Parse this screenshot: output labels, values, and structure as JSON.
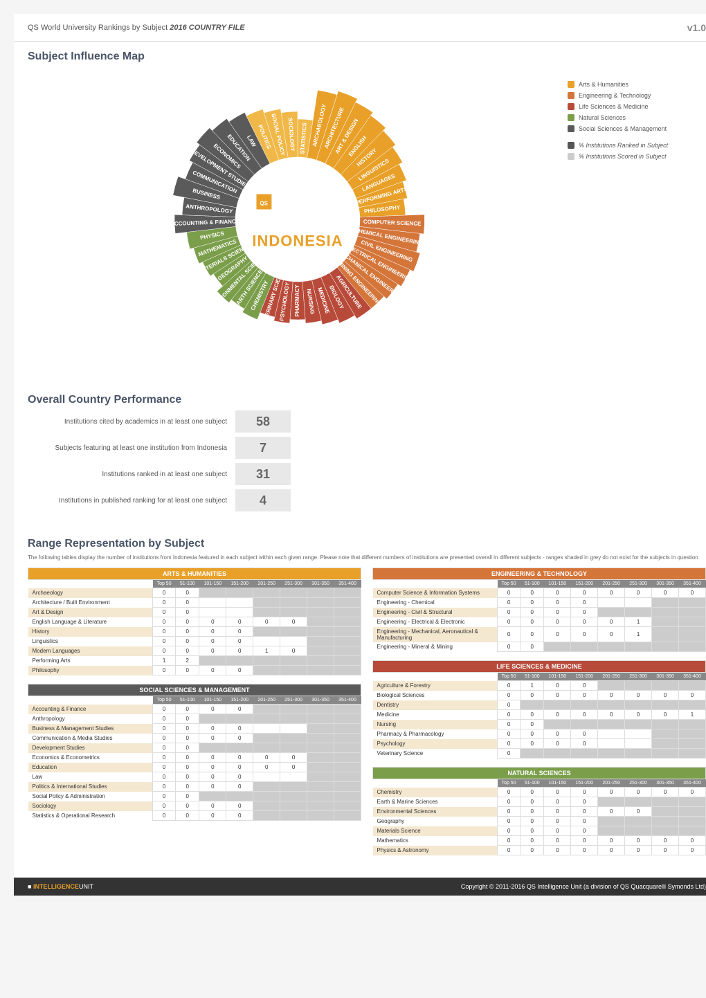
{
  "header": {
    "title_prefix": "QS World University Rankings by Subject ",
    "title_year": "2016 COUNTRY FILE",
    "version": "v1.0"
  },
  "sections": {
    "influence_title": "Subject Influence Map",
    "performance_title": "Overall Country Performance",
    "range_title": "Range Representation by Subject",
    "range_desc": "The following tables display the number of institutions from Indonesia featured in each subject within each given range. Please note that different numbers of institutions are presented overall in different subjects - ranges shaded in grey do not exist for the subjects in question"
  },
  "country": "INDONESIA",
  "qs_logo": "QS WORLD UNIVERSITY RANKINGS by subject",
  "legend": {
    "categories": [
      {
        "label": "Arts & Humanities",
        "color": "#e8a028"
      },
      {
        "label": "Engineering & Technology",
        "color": "#d4753a"
      },
      {
        "label": "Life Sciences & Medicine",
        "color": "#b84a3a"
      },
      {
        "label": "Natural Sciences",
        "color": "#7a9e4a"
      },
      {
        "label": "Social Sciences & Management",
        "color": "#5a5a5a"
      }
    ],
    "metrics": [
      {
        "label": "% Institutions Ranked in Subject",
        "color": "#555"
      },
      {
        "label": "% Institutions Scored in Subject",
        "color": "#ccc"
      }
    ]
  },
  "donut": {
    "slices": [
      {
        "label": "STATISTICS",
        "color": "#f0b848",
        "ring": 0.5
      },
      {
        "label": "ARCHAEOLOGY",
        "color": "#e8a028",
        "ring": 0.9
      },
      {
        "label": "ARCHITECTURE",
        "color": "#e8a028",
        "ring": 0.95
      },
      {
        "label": "ART & DESIGN",
        "color": "#e8a028",
        "ring": 0.9
      },
      {
        "label": "ENGLISH",
        "color": "#e8a028",
        "ring": 0.85
      },
      {
        "label": "HISTORY",
        "color": "#e8a028",
        "ring": 0.8
      },
      {
        "label": "LINGUISTICS",
        "color": "#e8a028",
        "ring": 0.75
      },
      {
        "label": "LANGUAGES",
        "color": "#e8a028",
        "ring": 0.7
      },
      {
        "label": "PERFORMING ARTS",
        "color": "#e8a028",
        "ring": 0.65
      },
      {
        "label": "PHILOSOPHY",
        "color": "#e8a028",
        "ring": 0.6
      },
      {
        "label": "COMPUTER SCIENCE",
        "color": "#d4753a",
        "ring": 0.85
      },
      {
        "label": "CHEMICAL ENGINEERING",
        "color": "#d4753a",
        "ring": 0.8
      },
      {
        "label": "CIVIL ENGINEERING",
        "color": "#d4753a",
        "ring": 0.85
      },
      {
        "label": "ELECTRICAL ENGINEERING",
        "color": "#d4753a",
        "ring": 0.8
      },
      {
        "label": "MECHANICAL ENGINEERING",
        "color": "#d4753a",
        "ring": 0.75
      },
      {
        "label": "MINING ENGINEERING",
        "color": "#d4753a",
        "ring": 0.7
      },
      {
        "label": "AGRICULTURE",
        "color": "#b84a3a",
        "ring": 0.7
      },
      {
        "label": "BIOLOGY",
        "color": "#b84a3a",
        "ring": 0.65
      },
      {
        "label": "MEDICINE",
        "color": "#b84a3a",
        "ring": 0.6
      },
      {
        "label": "NURSING",
        "color": "#b84a3a",
        "ring": 0.55
      },
      {
        "label": "PHARMACY",
        "color": "#b84a3a",
        "ring": 0.5
      },
      {
        "label": "PSYCHOLOGY",
        "color": "#b84a3a",
        "ring": 0.55
      },
      {
        "label": "VETERINARY SCIENCE",
        "color": "#b84a3a",
        "ring": 0.5
      },
      {
        "label": "CHEMISTRY",
        "color": "#7a9e4a",
        "ring": 0.6
      },
      {
        "label": "EARTH SCIENCES",
        "color": "#7a9e4a",
        "ring": 0.55
      },
      {
        "label": "ENVIRONMENTAL SCIENCES",
        "color": "#7a9e4a",
        "ring": 0.6
      },
      {
        "label": "GEOGRAPHY",
        "color": "#7a9e4a",
        "ring": 0.5
      },
      {
        "label": "MATERIALS SCIENCE",
        "color": "#7a9e4a",
        "ring": 0.55
      },
      {
        "label": "MATHEMATICS",
        "color": "#7a9e4a",
        "ring": 0.6
      },
      {
        "label": "PHYSICS",
        "color": "#7a9e4a",
        "ring": 0.65
      },
      {
        "label": "ACCOUNTING & FINANCE",
        "color": "#5a5a5a",
        "ring": 0.8
      },
      {
        "label": "ANTHROPOLOGY",
        "color": "#5a5a5a",
        "ring": 0.7
      },
      {
        "label": "BUSINESS",
        "color": "#5a5a5a",
        "ring": 0.85
      },
      {
        "label": "COMMUNICATION",
        "color": "#5a5a5a",
        "ring": 0.75
      },
      {
        "label": "DEVELOPMENT STUDIES",
        "color": "#5a5a5a",
        "ring": 0.8
      },
      {
        "label": "ECONOMICS",
        "color": "#5a5a5a",
        "ring": 0.85
      },
      {
        "label": "EDUCATION",
        "color": "#5a5a5a",
        "ring": 0.8
      },
      {
        "label": "LAW",
        "color": "#5a5a5a",
        "ring": 0.75
      },
      {
        "label": "POLITICS",
        "color": "#f0b848",
        "ring": 0.7
      },
      {
        "label": "SOCIAL POLICY",
        "color": "#f0b848",
        "ring": 0.65
      },
      {
        "label": "SOCIOLOGY",
        "color": "#f0b848",
        "ring": 0.6
      }
    ]
  },
  "performance": [
    {
      "label": "Institutions cited by academics in at least one subject",
      "value": "58"
    },
    {
      "label": "Subjects featuring at least one institution from Indonesia",
      "value": "7"
    },
    {
      "label": "Institutions ranked in at least one subject",
      "value": "31"
    },
    {
      "label": "Institutions in published ranking for at least one subject",
      "value": "4"
    }
  ],
  "range_columns": [
    "Top 50",
    "51-100",
    "101-150",
    "151-200",
    "201-250",
    "251-300",
    "301-350",
    "351-400"
  ],
  "tables": {
    "arts": {
      "title": "ARTS & HUMANITIES",
      "class": "cat-arts",
      "rows": [
        {
          "label": "Archaeology",
          "cells": [
            "0",
            "0",
            "",
            "",
            "",
            "",
            "",
            ""
          ],
          "grey": [
            2,
            3,
            4,
            5,
            6,
            7
          ]
        },
        {
          "label": "Architecture / Built Environment",
          "cells": [
            "0",
            "0",
            "",
            "",
            "",
            "",
            "",
            ""
          ],
          "grey": [
            4,
            5,
            6,
            7
          ]
        },
        {
          "label": "Art & Design",
          "cells": [
            "0",
            "0",
            "",
            "",
            "",
            "",
            "",
            ""
          ],
          "grey": [
            4,
            5,
            6,
            7
          ]
        },
        {
          "label": "English Language & Literature",
          "cells": [
            "0",
            "0",
            "0",
            "0",
            "0",
            "0",
            "",
            ""
          ],
          "grey": [
            6,
            7
          ]
        },
        {
          "label": "History",
          "cells": [
            "0",
            "0",
            "0",
            "0",
            "",
            "",
            "",
            ""
          ],
          "grey": [
            4,
            5,
            6,
            7
          ]
        },
        {
          "label": "Linguistics",
          "cells": [
            "0",
            "0",
            "0",
            "0",
            "",
            "",
            "",
            ""
          ],
          "grey": [
            6,
            7
          ]
        },
        {
          "label": "Modern Languages",
          "cells": [
            "0",
            "0",
            "0",
            "0",
            "1",
            "0",
            "",
            ""
          ],
          "grey": [
            6,
            7
          ]
        },
        {
          "label": "Performing Arts",
          "cells": [
            "1",
            "2",
            "",
            "",
            "",
            "",
            "",
            ""
          ],
          "grey": [
            2,
            3,
            4,
            5,
            6,
            7
          ]
        },
        {
          "label": "Philosophy",
          "cells": [
            "0",
            "0",
            "0",
            "0",
            "",
            "",
            "",
            ""
          ],
          "grey": [
            4,
            5,
            6,
            7
          ]
        }
      ]
    },
    "social": {
      "title": "SOCIAL SCIENCES & MANAGEMENT",
      "class": "cat-soc",
      "rows": [
        {
          "label": "Accounting & Finance",
          "cells": [
            "0",
            "0",
            "0",
            "0",
            "",
            "",
            "",
            ""
          ],
          "grey": [
            4,
            5,
            6,
            7
          ]
        },
        {
          "label": "Anthropology",
          "cells": [
            "0",
            "0",
            "",
            "",
            "",
            "",
            "",
            ""
          ],
          "grey": [
            2,
            3,
            4,
            5,
            6,
            7
          ]
        },
        {
          "label": "Business & Management Studies",
          "cells": [
            "0",
            "0",
            "0",
            "0",
            "",
            "",
            "",
            ""
          ],
          "grey": [
            6,
            7
          ]
        },
        {
          "label": "Communication & Media Studies",
          "cells": [
            "0",
            "0",
            "0",
            "0",
            "",
            "",
            "",
            ""
          ],
          "grey": [
            4,
            5,
            6,
            7
          ]
        },
        {
          "label": "Development Studies",
          "cells": [
            "0",
            "0",
            "",
            "",
            "",
            "",
            "",
            ""
          ],
          "grey": [
            2,
            3,
            4,
            5,
            6,
            7
          ]
        },
        {
          "label": "Economics & Econometrics",
          "cells": [
            "0",
            "0",
            "0",
            "0",
            "0",
            "0",
            "",
            ""
          ],
          "grey": [
            6,
            7
          ]
        },
        {
          "label": "Education",
          "cells": [
            "0",
            "0",
            "0",
            "0",
            "0",
            "0",
            "",
            ""
          ],
          "grey": [
            6,
            7
          ]
        },
        {
          "label": "Law",
          "cells": [
            "0",
            "0",
            "0",
            "0",
            "",
            "",
            "",
            ""
          ],
          "grey": [
            6,
            7
          ]
        },
        {
          "label": "Politics & International Studies",
          "cells": [
            "0",
            "0",
            "0",
            "0",
            "",
            "",
            "",
            ""
          ],
          "grey": [
            4,
            5,
            6,
            7
          ]
        },
        {
          "label": "Social Policy & Administration",
          "cells": [
            "0",
            "0",
            "",
            "",
            "",
            "",
            "",
            ""
          ],
          "grey": [
            2,
            3,
            4,
            5,
            6,
            7
          ]
        },
        {
          "label": "Sociology",
          "cells": [
            "0",
            "0",
            "0",
            "0",
            "",
            "",
            "",
            ""
          ],
          "grey": [
            4,
            5,
            6,
            7
          ]
        },
        {
          "label": "Statistics & Operational Research",
          "cells": [
            "0",
            "0",
            "0",
            "0",
            "",
            "",
            "",
            ""
          ],
          "grey": [
            4,
            5,
            6,
            7
          ]
        }
      ]
    },
    "eng": {
      "title": "ENGINEERING & TECHNOLOGY",
      "class": "cat-eng",
      "rows": [
        {
          "label": "Computer Science & Information Systems",
          "cells": [
            "0",
            "0",
            "0",
            "0",
            "0",
            "0",
            "0",
            "0"
          ],
          "grey": []
        },
        {
          "label": "Engineering - Chemical",
          "cells": [
            "0",
            "0",
            "0",
            "0",
            "",
            "",
            "",
            ""
          ],
          "grey": [
            6,
            7
          ]
        },
        {
          "label": "Engineering - Civil & Structural",
          "cells": [
            "0",
            "0",
            "0",
            "0",
            "",
            "",
            "",
            ""
          ],
          "grey": [
            4,
            5,
            6,
            7
          ]
        },
        {
          "label": "Engineering - Electrical & Electronic",
          "cells": [
            "0",
            "0",
            "0",
            "0",
            "0",
            "1",
            "",
            ""
          ],
          "grey": [
            6,
            7
          ]
        },
        {
          "label": "Engineering - Mechanical, Aeronautical & Manufacturing",
          "cells": [
            "0",
            "0",
            "0",
            "0",
            "0",
            "1",
            "",
            ""
          ],
          "grey": [
            6,
            7
          ]
        },
        {
          "label": "Engineering - Mineral & Mining",
          "cells": [
            "0",
            "0",
            "",
            "",
            "",
            "",
            "",
            ""
          ],
          "grey": [
            2,
            3,
            4,
            5,
            6,
            7
          ]
        }
      ]
    },
    "life": {
      "title": "LIFE SCIENCES & MEDICINE",
      "class": "cat-life",
      "rows": [
        {
          "label": "Agriculture & Forestry",
          "cells": [
            "0",
            "1",
            "0",
            "0",
            "",
            "",
            "",
            ""
          ],
          "grey": [
            4,
            5,
            6,
            7
          ]
        },
        {
          "label": "Biological Sciences",
          "cells": [
            "0",
            "0",
            "0",
            "0",
            "0",
            "0",
            "0",
            "0"
          ],
          "grey": []
        },
        {
          "label": "Dentistry",
          "cells": [
            "0",
            "",
            "",
            "",
            "",
            "",
            "",
            ""
          ],
          "grey": [
            1,
            2,
            3,
            4,
            5,
            6,
            7
          ]
        },
        {
          "label": "Medicine",
          "cells": [
            "0",
            "0",
            "0",
            "0",
            "0",
            "0",
            "0",
            "1"
          ],
          "grey": []
        },
        {
          "label": "Nursing",
          "cells": [
            "0",
            "0",
            "",
            "",
            "",
            "",
            "",
            ""
          ],
          "grey": [
            2,
            3,
            4,
            5,
            6,
            7
          ]
        },
        {
          "label": "Pharmacy & Pharmacology",
          "cells": [
            "0",
            "0",
            "0",
            "0",
            "",
            "",
            "",
            ""
          ],
          "grey": [
            6,
            7
          ]
        },
        {
          "label": "Psychology",
          "cells": [
            "0",
            "0",
            "0",
            "0",
            "",
            "",
            "",
            ""
          ],
          "grey": [
            6,
            7
          ]
        },
        {
          "label": "Veterinary Science",
          "cells": [
            "0",
            "",
            "",
            "",
            "",
            "",
            "",
            ""
          ],
          "grey": [
            1,
            2,
            3,
            4,
            5,
            6,
            7
          ]
        }
      ]
    },
    "nat": {
      "title": "NATURAL SCIENCES",
      "class": "cat-nat",
      "rows": [
        {
          "label": "Chemistry",
          "cells": [
            "0",
            "0",
            "0",
            "0",
            "0",
            "0",
            "0",
            "0"
          ],
          "grey": []
        },
        {
          "label": "Earth & Marine Sciences",
          "cells": [
            "0",
            "0",
            "0",
            "0",
            "",
            "",
            "",
            ""
          ],
          "grey": [
            4,
            5,
            6,
            7
          ]
        },
        {
          "label": "Environmental Sciences",
          "cells": [
            "0",
            "0",
            "0",
            "0",
            "0",
            "0",
            "",
            ""
          ],
          "grey": [
            6,
            7
          ]
        },
        {
          "label": "Geography",
          "cells": [
            "0",
            "0",
            "0",
            "0",
            "",
            "",
            "",
            ""
          ],
          "grey": [
            4,
            5,
            6,
            7
          ]
        },
        {
          "label": "Materials Science",
          "cells": [
            "0",
            "0",
            "0",
            "0",
            "",
            "",
            "",
            ""
          ],
          "grey": [
            4,
            5,
            6,
            7
          ]
        },
        {
          "label": "Mathematics",
          "cells": [
            "0",
            "0",
            "0",
            "0",
            "0",
            "0",
            "0",
            "0"
          ],
          "grey": []
        },
        {
          "label": "Physics & Astronomy",
          "cells": [
            "0",
            "0",
            "0",
            "0",
            "0",
            "0",
            "0",
            "0"
          ],
          "grey": []
        }
      ]
    }
  },
  "footer": {
    "left_brand": "INTELLIGENCE",
    "left_suffix": "UNIT",
    "right": "Copyright © 2011-2016 QS Intelligence Unit (a division of QS Quacquarelli Symonds Ltd)"
  }
}
